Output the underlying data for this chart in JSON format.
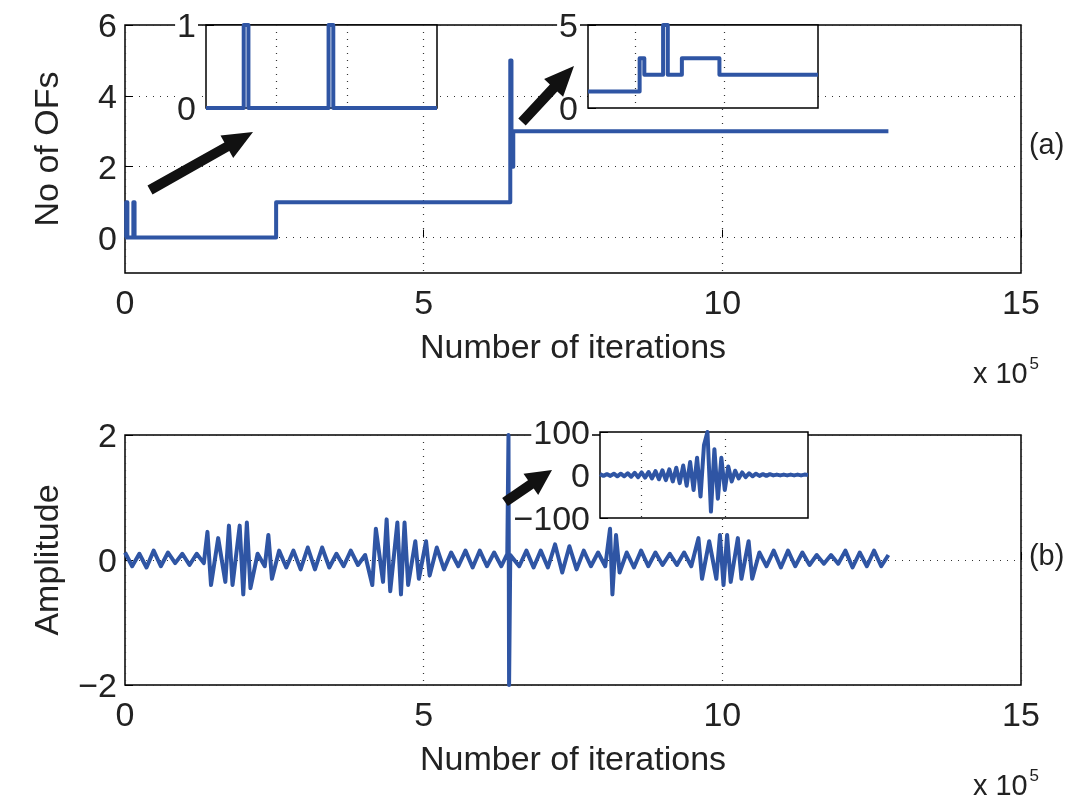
{
  "chart_data": [
    {
      "type": "step",
      "xlabel": "Number of iterations",
      "ylabel": "No of OFs",
      "annotations": [
        "(a)",
        "x 10$^{5}$"
      ],
      "color": "#2f55a4",
      "x": [
        0,
        0.02,
        0.04,
        0.14,
        0.16,
        2.53,
        6.45,
        6.47,
        6.5,
        12.78
      ],
      "values": [
        0,
        1,
        0,
        1,
        0,
        1,
        5,
        2,
        3,
        3
      ],
      "xlim": [
        0,
        15
      ],
      "xticks": [
        0,
        5,
        10,
        15
      ],
      "ylim": [
        -1,
        6
      ],
      "yticks": [
        0,
        2,
        4,
        6
      ],
      "grid": true
    },
    {
      "type": "step",
      "color": "#2f55a4",
      "tick_labels": "y",
      "grid": "x",
      "categories": [
        null,
        null,
        null,
        null,
        null,
        null,
        null,
        null,
        null,
        null,
        null,
        null,
        null,
        null,
        null,
        null,
        null,
        null,
        null,
        null,
        null,
        null,
        null,
        null,
        null,
        null,
        null,
        null,
        null,
        null,
        null,
        null,
        null,
        null,
        null,
        null,
        null,
        null,
        null,
        null,
        null,
        null,
        null,
        null,
        null,
        null,
        null,
        null,
        null,
        null
      ],
      "values": [
        0,
        0,
        0,
        0,
        0,
        0,
        0,
        0,
        1,
        0,
        0,
        0,
        0,
        0,
        0,
        0,
        0,
        0,
        0,
        0,
        0,
        0,
        0,
        0,
        0,
        0,
        1,
        0,
        0,
        0,
        0,
        0,
        0,
        0,
        0,
        0,
        0,
        0,
        0,
        0,
        0,
        0,
        0,
        0,
        0,
        0,
        0,
        0,
        0,
        0
      ],
      "ylim": [
        0,
        1
      ],
      "yticks": [
        0,
        1
      ]
    },
    {
      "type": "step",
      "color": "#2f55a4",
      "tick_labels": "y",
      "grid": "x",
      "categories": [
        null,
        null,
        null,
        null,
        null,
        null,
        null,
        null,
        null,
        null,
        null,
        null,
        null,
        null,
        null,
        null,
        null,
        null,
        null,
        null,
        null,
        null,
        null,
        null,
        null,
        null,
        null,
        null,
        null,
        null,
        null,
        null,
        null,
        null,
        null,
        null,
        null,
        null,
        null,
        null,
        null,
        null,
        null,
        null,
        null,
        null,
        null,
        null,
        null,
        null
      ],
      "values": [
        1,
        1,
        1,
        1,
        1,
        1,
        1,
        1,
        1,
        1,
        1,
        3,
        2,
        2,
        2,
        2,
        5,
        2,
        2,
        2,
        3,
        3,
        3,
        3,
        3,
        3,
        3,
        3,
        2,
        2,
        2,
        2,
        2,
        2,
        2,
        2,
        2,
        2,
        2,
        2,
        2,
        2,
        2,
        2,
        2,
        2,
        2,
        2,
        2,
        2
      ],
      "ylim": [
        0,
        5
      ],
      "yticks": [
        0,
        5
      ]
    },
    {
      "type": "line",
      "xlabel": "Number of iterations",
      "ylabel": "Amplitude",
      "annotations": [
        "(b)",
        "x 10$^{5}$"
      ],
      "color": "#2f55a4",
      "x": [
        0,
        0.12,
        0.24,
        0.36,
        0.48,
        0.6,
        0.72,
        0.84,
        0.96,
        1.08,
        1.2,
        1.32,
        1.38,
        1.44,
        1.56,
        1.68,
        1.74,
        1.8,
        1.92,
        1.98,
        2.04,
        2.1,
        2.22,
        2.34,
        2.4,
        2.46,
        2.58,
        2.7,
        2.82,
        2.94,
        3.06,
        3.18,
        3.3,
        3.42,
        3.54,
        3.66,
        3.78,
        3.9,
        4.02,
        4.14,
        4.2,
        4.32,
        4.38,
        4.44,
        4.56,
        4.62,
        4.68,
        4.74,
        4.86,
        4.92,
        5.04,
        5.1,
        5.22,
        5.34,
        5.46,
        5.58,
        5.7,
        5.82,
        5.94,
        6.06,
        6.18,
        6.3,
        6.4,
        6.42,
        6.43,
        6.45,
        6.6,
        6.72,
        6.84,
        6.96,
        7.08,
        7.2,
        7.32,
        7.44,
        7.56,
        7.68,
        7.8,
        7.92,
        8.04,
        8.12,
        8.16,
        8.22,
        8.28,
        8.4,
        8.52,
        8.64,
        8.76,
        8.88,
        9.0,
        9.12,
        9.24,
        9.36,
        9.48,
        9.6,
        9.66,
        9.78,
        9.9,
        9.96,
        10.02,
        10.08,
        10.14,
        10.26,
        10.32,
        10.44,
        10.5,
        10.62,
        10.74,
        10.86,
        10.98,
        11.1,
        11.22,
        11.34,
        11.46,
        11.58,
        11.7,
        11.82,
        11.94,
        12.06,
        12.18,
        12.3,
        12.42,
        12.54,
        12.66,
        12.78
      ],
      "values": [
        0.12,
        -0.1,
        0.1,
        -0.12,
        0.15,
        -0.1,
        0.12,
        -0.05,
        0.1,
        -0.08,
        0.1,
        -0.05,
        0.45,
        -0.4,
        0.35,
        -0.35,
        0.55,
        -0.4,
        0.55,
        -0.55,
        0.6,
        -0.45,
        0.1,
        -0.1,
        0.4,
        -0.3,
        0.15,
        -0.12,
        0.15,
        -0.15,
        0.2,
        -0.15,
        0.2,
        -0.12,
        0.1,
        -0.1,
        0.15,
        -0.08,
        0.08,
        -0.4,
        0.5,
        -0.35,
        0.65,
        -0.5,
        0.6,
        -0.55,
        0.6,
        -0.4,
        0.3,
        -0.3,
        0.3,
        -0.25,
        0.2,
        -0.15,
        0.12,
        -0.1,
        0.15,
        -0.12,
        0.15,
        -0.1,
        0.12,
        -0.1,
        0.1,
        2,
        -2,
        0.08,
        -0.1,
        0.15,
        -0.12,
        0.15,
        -0.12,
        0.25,
        -0.2,
        0.22,
        -0.15,
        0.15,
        -0.1,
        0.12,
        -0.1,
        0.5,
        -0.55,
        0.4,
        -0.2,
        0.12,
        -0.12,
        0.15,
        -0.1,
        0.12,
        -0.08,
        0.1,
        -0.08,
        0.12,
        -0.1,
        0.35,
        -0.3,
        0.3,
        -0.3,
        0.4,
        -0.4,
        0.4,
        -0.35,
        0.35,
        -0.3,
        0.3,
        -0.3,
        0.12,
        -0.1,
        0.15,
        -0.12,
        0.15,
        -0.1,
        0.12,
        -0.08,
        0.08,
        -0.06,
        0.08,
        -0.06,
        0.15,
        -0.12,
        0.12,
        -0.1,
        0.15,
        -0.1,
        0.08
      ],
      "xlim": [
        0,
        15
      ],
      "xticks": [
        0,
        5,
        10,
        15
      ],
      "ylim": [
        -2,
        2
      ],
      "yticks": [
        {
          "value": -2,
          "label": "−2"
        },
        0,
        2
      ],
      "grid": true
    },
    {
      "type": "line",
      "color": "#2f55a4",
      "tick_labels": "y",
      "grid": "x",
      "categories": [
        null,
        null,
        null,
        null,
        null,
        null,
        null,
        null,
        null,
        null,
        null,
        null,
        null,
        null,
        null,
        null,
        null,
        null,
        null,
        null,
        null,
        null,
        null,
        null,
        null,
        null,
        null,
        null,
        null,
        null,
        null,
        null,
        null,
        null,
        null,
        null,
        null,
        null,
        null,
        null,
        null,
        null,
        null,
        null,
        null,
        null,
        null,
        null,
        null,
        null,
        null,
        null,
        null,
        null,
        null,
        null,
        null,
        null,
        null,
        null,
        null
      ],
      "values": [
        2,
        -2,
        2,
        -2,
        3,
        -3,
        3,
        -3,
        4,
        -4,
        5,
        -5,
        6,
        -6,
        7,
        -8,
        9,
        -10,
        11,
        -12,
        13,
        -15,
        17,
        -19,
        22,
        -25,
        30,
        -35,
        40,
        -50,
        70,
        100,
        -85,
        60,
        -55,
        40,
        -35,
        20,
        -15,
        10,
        -8,
        6,
        -5,
        4,
        -3,
        3,
        -2,
        2,
        -2,
        2,
        -1,
        1,
        -1,
        1,
        -1,
        1,
        -1,
        1,
        -1,
        1,
        0
      ],
      "ylim": [
        -100,
        100
      ],
      "yticks": [
        {
          "value": -100,
          "label": "−100"
        },
        0,
        100
      ]
    }
  ]
}
